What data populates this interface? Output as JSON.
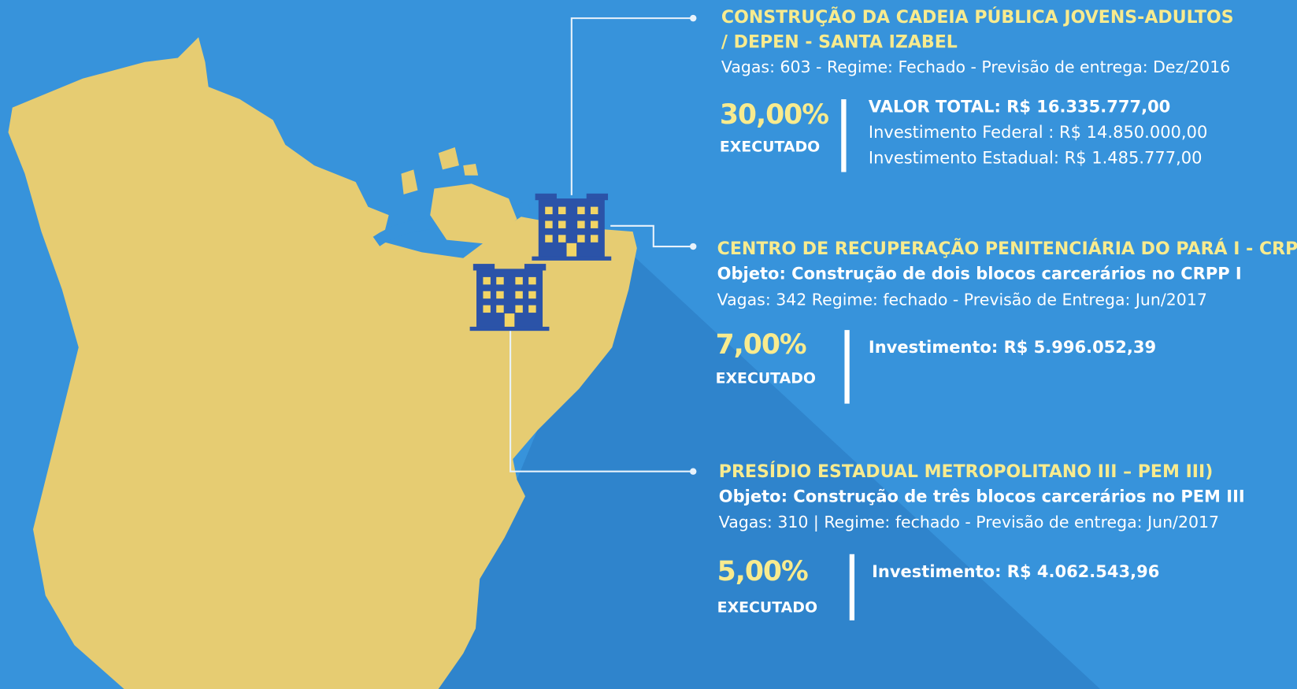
{
  "projects": [
    {
      "title": [
        "CONSTRUÇÃO DA CADEIA PÚBLICA JOVENS-ADULTOS",
        "/ DEPEN - SANTA IZABEL"
      ],
      "details": "Vagas:  603  -  Regime:  Fechado  -  Previsão de entrega: Dez/2016",
      "percent": "30,00%",
      "status": "EXECUTADO",
      "total": "VALOR TOTAL: R$ 16.335.777,00",
      "lines": [
        "Investimento Federal : R$ 14.850.000,00",
        "Investimento Estadual: R$ 1.485.777,00"
      ]
    },
    {
      "title": [
        "CENTRO DE RECUPERAÇÃO PENITENCIÁRIA DO PARÁ I - CRPP I"
      ],
      "objeto": "Objeto: Construção de dois blocos carcerários no CRPP I",
      "details": "Vagas: 342 Regime: fechado  - Previsão de Entrega: Jun/2017",
      "percent": "7,00%",
      "status": "EXECUTADO",
      "total": "Investimento: R$ 5.996.052,39"
    },
    {
      "title": [
        "PRESÍDIO ESTADUAL METROPOLITANO III – PEM III)"
      ],
      "objeto": "Objeto: Construção de três blocos carcerários no PEM III",
      "details": "Vagas: 310 | Regime: fechado - Previsão de entrega: Jun/2017",
      "percent": "5,00%",
      "status": "EXECUTADO",
      "total": "Investimento: R$ 4.062.543,96"
    }
  ]
}
